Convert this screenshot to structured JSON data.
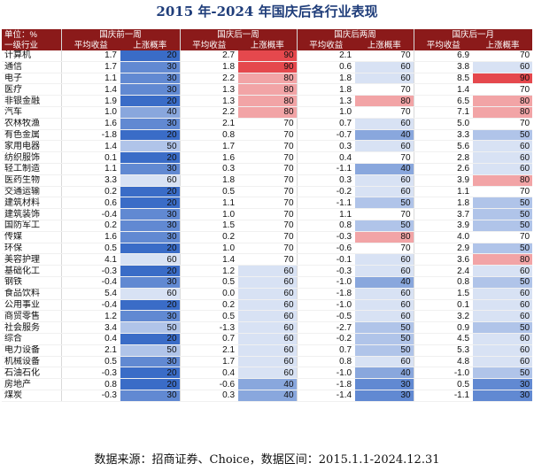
{
  "title": "2015 年-2024 年国庆后各行业表现",
  "source": "数据来源：招商证券、Choice，数据区间：2015.1.1-2024.12.31",
  "colors": {
    "header_bg": "#8b1a1a",
    "high": "#e5484d",
    "low": "#3a6cc7",
    "mid": "#ffffff"
  },
  "chart_data": {
    "type": "table",
    "unit_label": "单位：%",
    "row_header": "一级行业",
    "periods": [
      "国庆前一周",
      "国庆后一周",
      "国庆后两周",
      "国庆后一月"
    ],
    "sub_columns": [
      "平均收益",
      "上涨概率"
    ],
    "rows": [
      {
        "name": "计算机",
        "v": [
          1.7,
          20,
          2.7,
          90,
          2.1,
          70,
          6.9,
          70
        ]
      },
      {
        "name": "通信",
        "v": [
          1.7,
          30,
          1.8,
          90,
          0.6,
          60,
          3.8,
          60
        ]
      },
      {
        "name": "电子",
        "v": [
          1.1,
          30,
          2.2,
          80,
          1.8,
          60,
          8.5,
          90
        ]
      },
      {
        "name": "医疗",
        "v": [
          1.4,
          30,
          1.3,
          80,
          1.8,
          70,
          1.4,
          70
        ]
      },
      {
        "name": "非银金融",
        "v": [
          1.9,
          20,
          1.3,
          80,
          1.3,
          80,
          6.5,
          80
        ]
      },
      {
        "name": "汽车",
        "v": [
          1.0,
          40,
          2.2,
          80,
          1.0,
          70,
          7.1,
          80
        ]
      },
      {
        "name": "农林牧渔",
        "v": [
          1.6,
          30,
          2.1,
          70,
          0.7,
          60,
          5.0,
          70
        ]
      },
      {
        "name": "有色金属",
        "v": [
          -1.8,
          20,
          0.8,
          70,
          -0.7,
          40,
          3.3,
          50
        ]
      },
      {
        "name": "家用电器",
        "v": [
          1.4,
          50,
          1.7,
          70,
          0.3,
          60,
          5.6,
          60
        ]
      },
      {
        "name": "纺织服饰",
        "v": [
          0.1,
          20,
          1.6,
          70,
          0.4,
          70,
          2.8,
          60
        ]
      },
      {
        "name": "轻工制造",
        "v": [
          1.1,
          30,
          0.3,
          70,
          -1.1,
          40,
          2.6,
          60
        ]
      },
      {
        "name": "医药生物",
        "v": [
          3.3,
          60,
          1.8,
          70,
          0.3,
          60,
          3.9,
          80
        ]
      },
      {
        "name": "交通运输",
        "v": [
          0.2,
          20,
          0.5,
          70,
          -0.2,
          60,
          1.1,
          70
        ]
      },
      {
        "name": "建筑材料",
        "v": [
          0.6,
          20,
          1.1,
          70,
          -1.1,
          50,
          1.8,
          50
        ]
      },
      {
        "name": "建筑装饰",
        "v": [
          -0.4,
          30,
          1.0,
          70,
          1.1,
          70,
          3.7,
          50
        ]
      },
      {
        "name": "国防军工",
        "v": [
          0.2,
          30,
          1.5,
          70,
          0.8,
          50,
          3.9,
          50
        ]
      },
      {
        "name": "传媒",
        "v": [
          1.6,
          30,
          0.2,
          70,
          -0.3,
          80,
          4.0,
          70
        ]
      },
      {
        "name": "环保",
        "v": [
          0.5,
          20,
          1.0,
          70,
          -0.6,
          70,
          2.9,
          50
        ]
      },
      {
        "name": "美容护理",
        "v": [
          4.1,
          60,
          1.4,
          70,
          -0.1,
          60,
          3.6,
          80
        ]
      },
      {
        "name": "基础化工",
        "v": [
          -0.3,
          20,
          1.2,
          60,
          -0.3,
          60,
          2.4,
          60
        ]
      },
      {
        "name": "钢铁",
        "v": [
          -0.4,
          30,
          0.5,
          60,
          -1.0,
          40,
          0.8,
          50
        ]
      },
      {
        "name": "食品饮料",
        "v": [
          5.4,
          60,
          0.0,
          60,
          -1.8,
          60,
          1.5,
          60
        ]
      },
      {
        "name": "公用事业",
        "v": [
          -0.4,
          20,
          0.2,
          60,
          -1.0,
          60,
          0.1,
          60
        ]
      },
      {
        "name": "商贸零售",
        "v": [
          1.2,
          30,
          0.5,
          60,
          -0.5,
          60,
          3.2,
          60
        ]
      },
      {
        "name": "社会服务",
        "v": [
          3.4,
          50,
          -1.3,
          60,
          -2.7,
          50,
          0.9,
          50
        ]
      },
      {
        "name": "综合",
        "v": [
          0.4,
          20,
          0.7,
          60,
          -0.2,
          50,
          4.5,
          60
        ]
      },
      {
        "name": "电力设备",
        "v": [
          2.1,
          50,
          2.1,
          60,
          0.7,
          50,
          5.3,
          60
        ]
      },
      {
        "name": "机械设备",
        "v": [
          0.5,
          30,
          1.7,
          60,
          0.8,
          60,
          4.8,
          60
        ]
      },
      {
        "name": "石油石化",
        "v": [
          -0.3,
          20,
          0.4,
          60,
          -1.0,
          40,
          -1.0,
          50
        ]
      },
      {
        "name": "房地产",
        "v": [
          0.8,
          20,
          -0.6,
          40,
          -1.8,
          30,
          0.5,
          30
        ]
      },
      {
        "name": "煤炭",
        "v": [
          -0.3,
          30,
          0.3,
          40,
          -1.4,
          30,
          -1.1,
          30
        ]
      }
    ]
  }
}
